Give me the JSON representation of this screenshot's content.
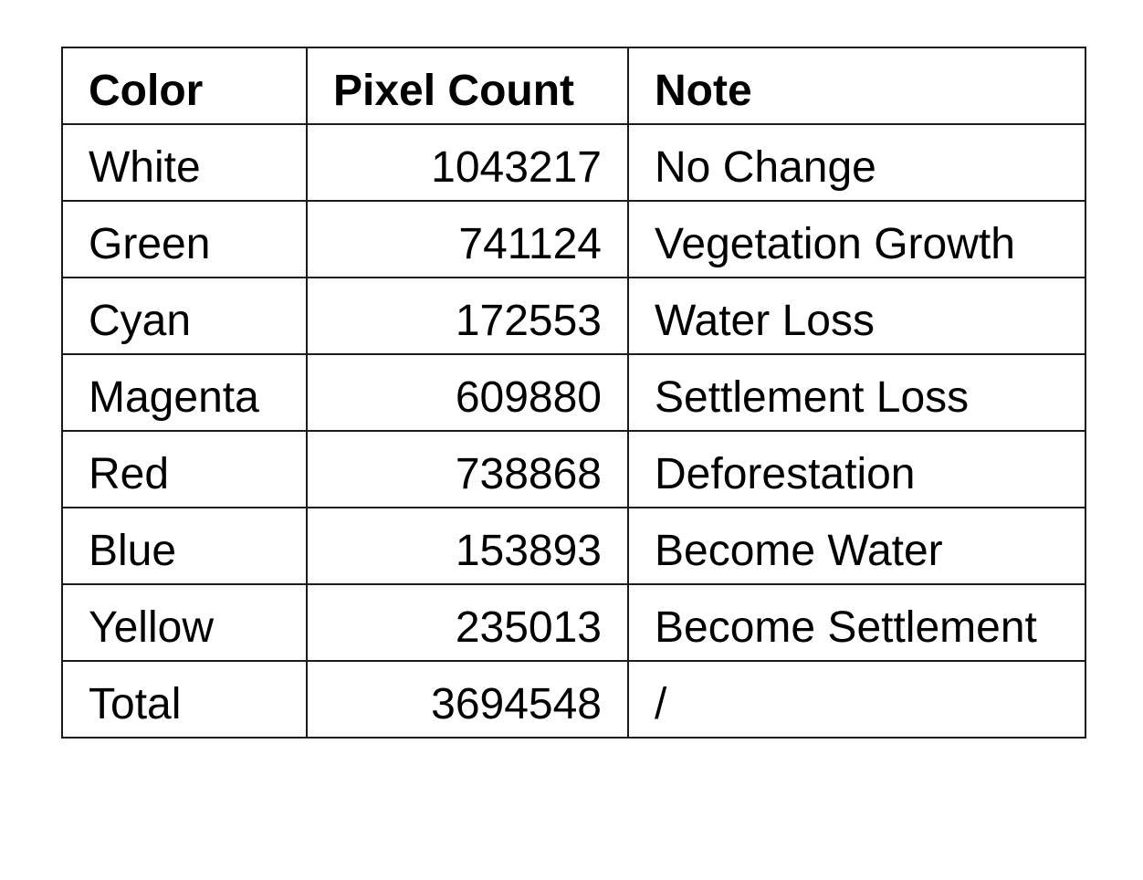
{
  "table": {
    "headers": [
      "Color",
      "Pixel Count",
      "Note"
    ],
    "rows": [
      {
        "color": "White",
        "count": "1043217",
        "note": "No Change"
      },
      {
        "color": "Green",
        "count": "741124",
        "note": "Vegetation Growth"
      },
      {
        "color": "Cyan",
        "count": "172553",
        "note": "Water Loss"
      },
      {
        "color": "Magenta",
        "count": "609880",
        "note": "Settlement Loss"
      },
      {
        "color": "Red",
        "count": "738868",
        "note": "Deforestation"
      },
      {
        "color": "Blue",
        "count": "153893",
        "note": "Become Water"
      },
      {
        "color": "Yellow",
        "count": "235013",
        "note": "Become Settlement"
      },
      {
        "color": "Total",
        "count": "3694548",
        "note": "/"
      }
    ]
  }
}
